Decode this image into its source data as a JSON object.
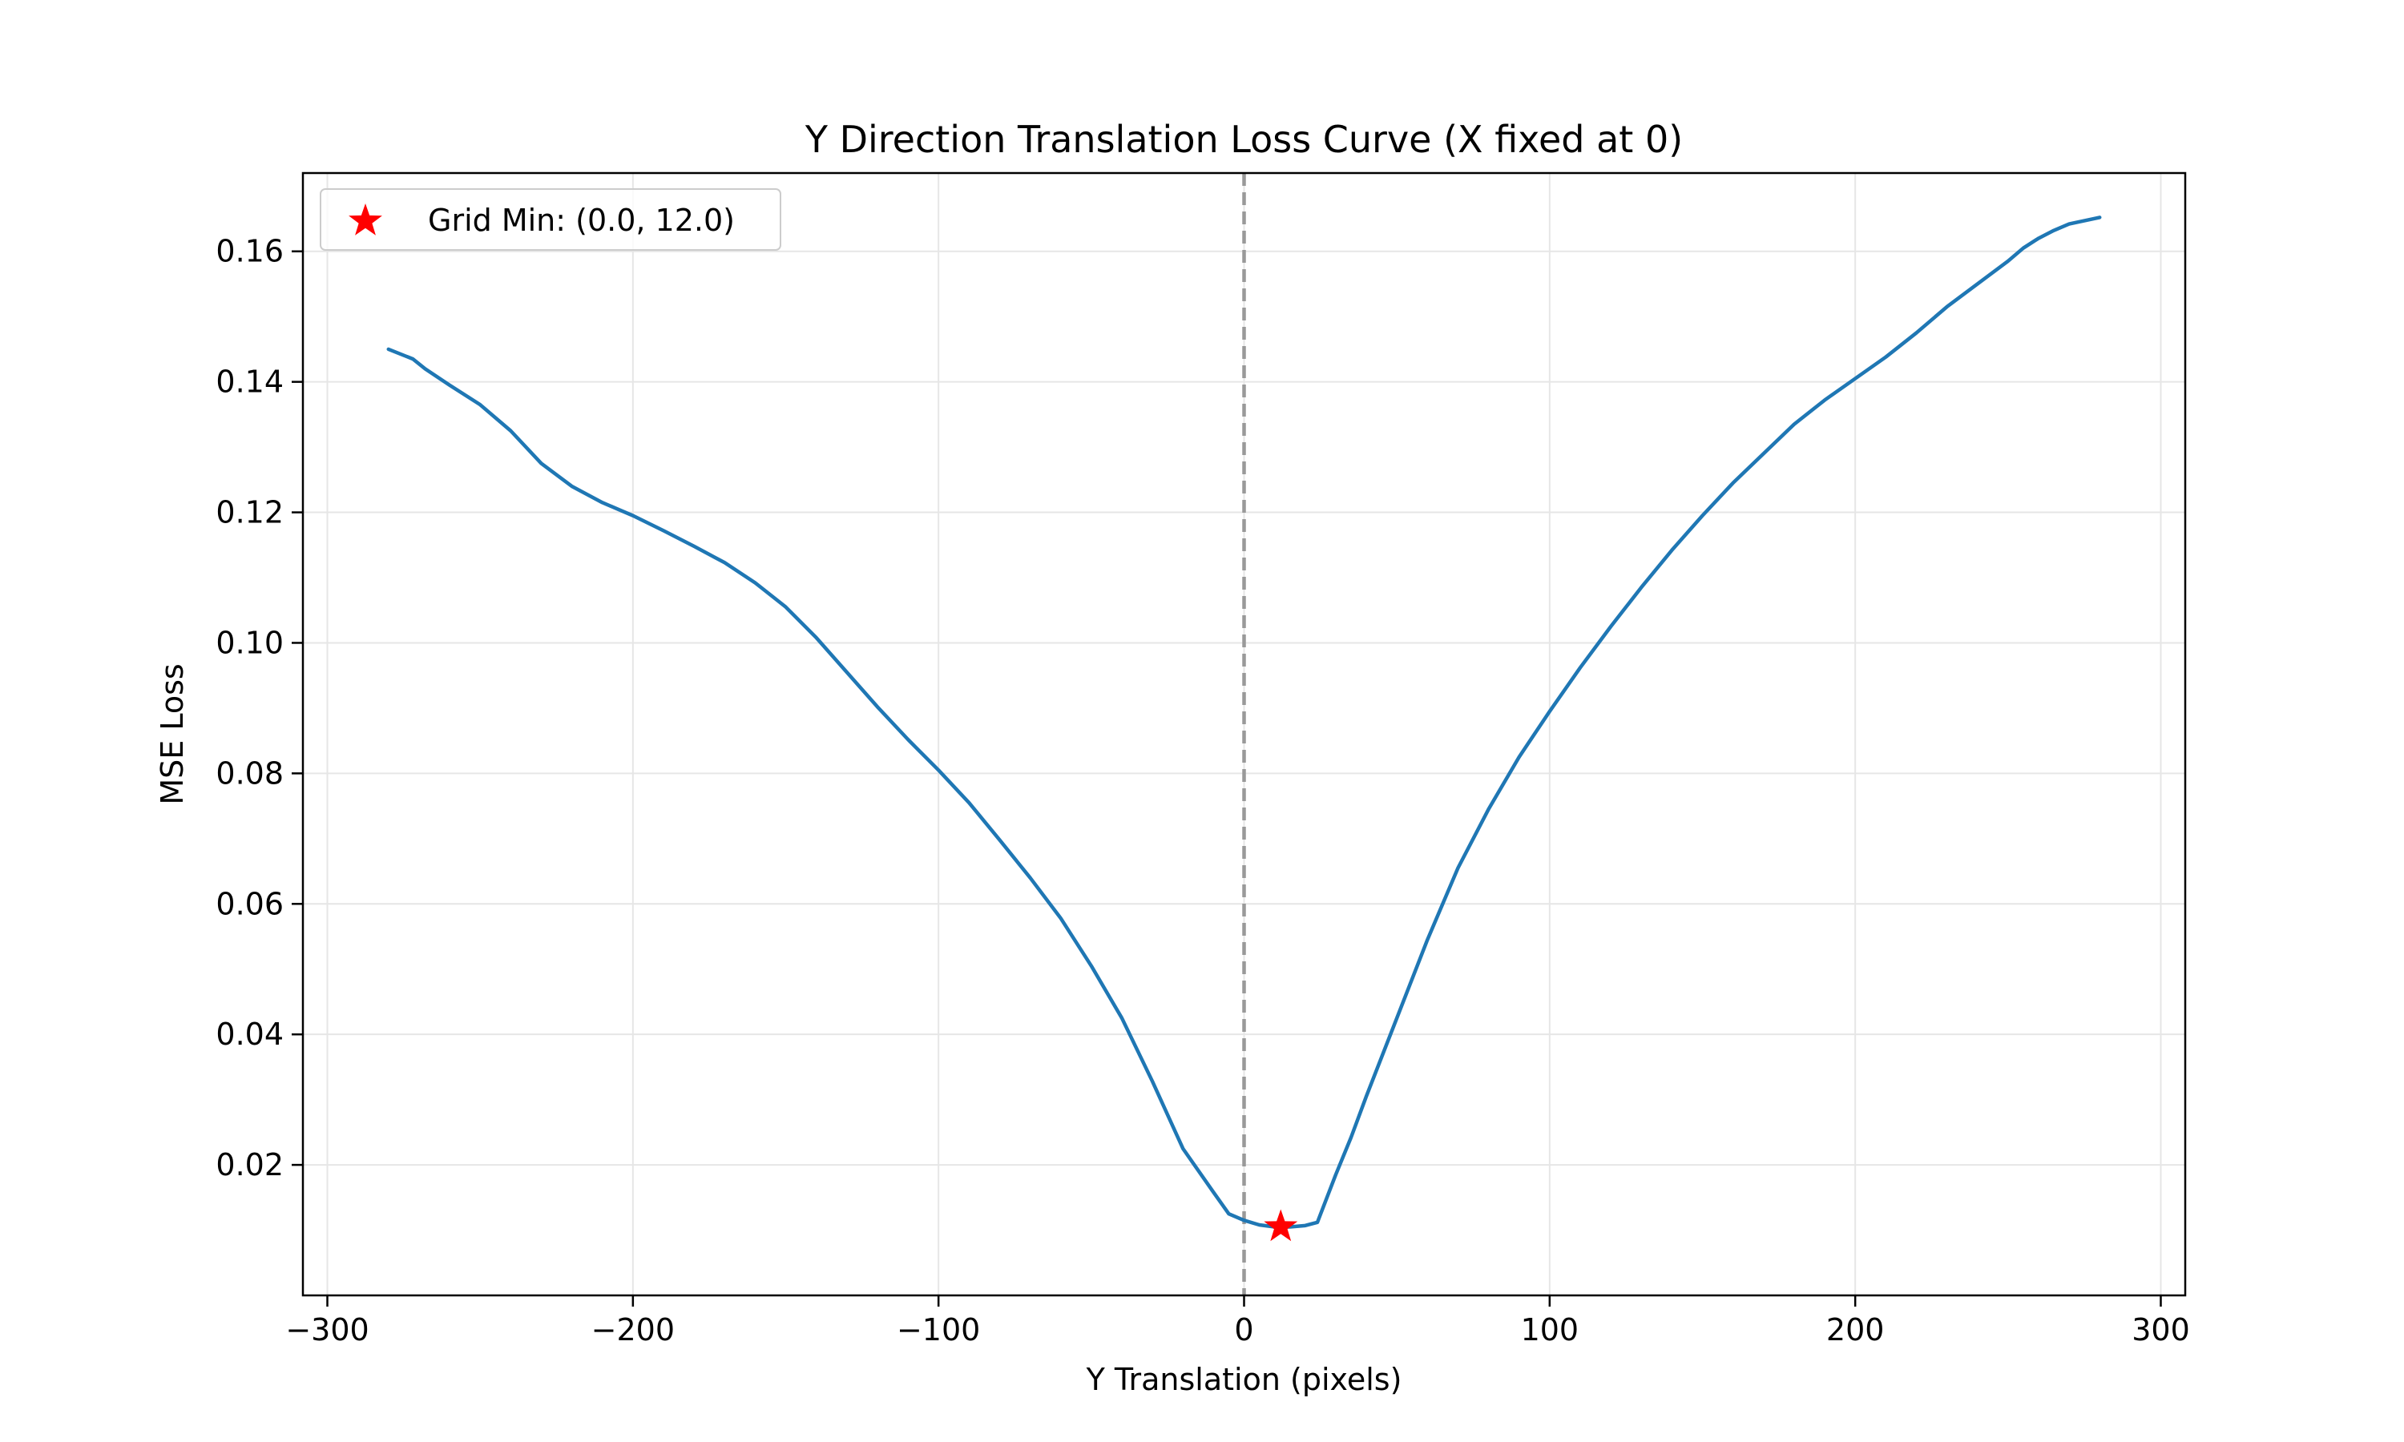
{
  "chart_data": {
    "type": "line",
    "title": "Y Direction Translation Loss Curve (X fixed at 0)",
    "xlabel": "Y Translation (pixels)",
    "ylabel": "MSE Loss",
    "xlim": [
      -308,
      308
    ],
    "ylim": [
      0.0,
      0.172
    ],
    "x_ticks": [
      -300,
      -200,
      -100,
      0,
      100,
      200,
      300
    ],
    "x_tick_labels": [
      "−300",
      "−200",
      "−100",
      "0",
      "100",
      "200",
      "300"
    ],
    "y_ticks": [
      0.02,
      0.04,
      0.06,
      0.08,
      0.1,
      0.12,
      0.14,
      0.16
    ],
    "y_tick_labels": [
      "0.02",
      "0.04",
      "0.06",
      "0.08",
      "0.10",
      "0.12",
      "0.14",
      "0.16"
    ],
    "grid": true,
    "legend_position": "upper-left",
    "reference_line": {
      "x": 0,
      "style": "dashed",
      "color": "#999999"
    },
    "series": [
      {
        "color": "#1f77b4",
        "x": [
          -280,
          -272,
          -268,
          -260,
          -250,
          -240,
          -230,
          -220,
          -210,
          -200,
          -190,
          -180,
          -170,
          -160,
          -150,
          -140,
          -130,
          -120,
          -110,
          -100,
          -90,
          -80,
          -70,
          -60,
          -50,
          -40,
          -30,
          -20,
          -10,
          -5,
          0,
          5,
          10,
          15,
          20,
          24,
          30,
          35,
          40,
          50,
          60,
          70,
          80,
          90,
          100,
          110,
          120,
          130,
          140,
          150,
          160,
          170,
          180,
          190,
          200,
          210,
          220,
          230,
          240,
          250,
          255,
          260,
          265,
          270,
          280
        ],
        "y": [
          0.145,
          0.1435,
          0.142,
          0.1395,
          0.1365,
          0.1325,
          0.1275,
          0.124,
          0.1215,
          0.1195,
          0.1172,
          0.1148,
          0.1123,
          0.1092,
          0.1055,
          0.1008,
          0.0955,
          0.0902,
          0.0852,
          0.0805,
          0.0755,
          0.0698,
          0.064,
          0.0578,
          0.0505,
          0.0425,
          0.0328,
          0.0225,
          0.0158,
          0.0125,
          0.0115,
          0.0108,
          0.0105,
          0.0105,
          0.0107,
          0.0112,
          0.0185,
          0.0242,
          0.0305,
          0.0425,
          0.0545,
          0.0655,
          0.0745,
          0.0825,
          0.0895,
          0.0962,
          0.1025,
          0.1085,
          0.1142,
          0.1195,
          0.1245,
          0.129,
          0.1335,
          0.1372,
          0.1405,
          0.1438,
          0.1475,
          0.1515,
          0.155,
          0.1585,
          0.1605,
          0.162,
          0.1632,
          0.1642,
          0.1652
        ]
      }
    ],
    "markers": [
      {
        "label": "Grid Min: (0.0, 12.0)",
        "x": 12,
        "y": 0.0105,
        "shape": "star",
        "color": "#ff0000"
      }
    ]
  }
}
